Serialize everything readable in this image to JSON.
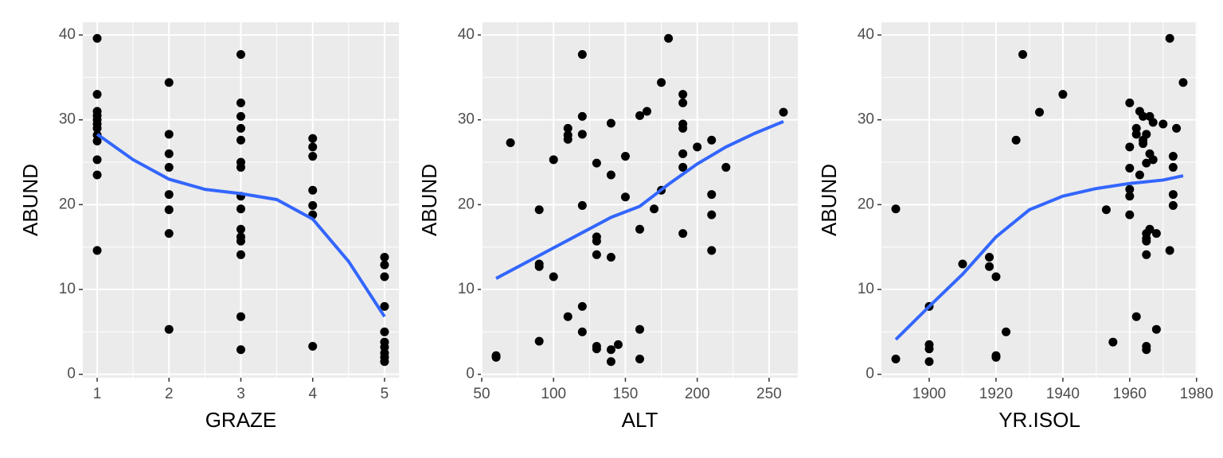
{
  "chart_data": [
    {
      "type": "scatter",
      "x_label": "GRAZE",
      "y_label": "ABUND",
      "x": [
        1,
        1,
        1,
        1,
        1,
        1,
        1,
        1,
        1,
        1,
        1,
        1,
        2,
        2,
        2,
        2,
        2,
        2,
        2,
        2,
        3,
        3,
        3,
        3,
        3,
        3,
        3,
        3,
        3,
        3,
        3,
        3,
        3,
        3,
        3,
        4,
        4,
        4,
        4,
        4,
        4,
        4,
        5,
        5,
        5,
        5,
        5,
        5,
        5,
        5,
        5,
        5
      ],
      "values": [
        39.6,
        33,
        31,
        30.5,
        30,
        29.5,
        29,
        28.2,
        27.5,
        25.3,
        23.5,
        14.6,
        34.4,
        28.3,
        26,
        24.4,
        21.2,
        19.4,
        16.6,
        5.3,
        37.7,
        32,
        30.4,
        29,
        27.6,
        25,
        24.4,
        21,
        19.5,
        17.1,
        16.2,
        15.7,
        14.1,
        6.8,
        2.9,
        27.8,
        26.8,
        25.7,
        21.7,
        19.9,
        18.8,
        3.3,
        13.8,
        12.9,
        11.5,
        8,
        5,
        3.8,
        3.2,
        2.5,
        2,
        1.5
      ],
      "color": "#000000",
      "smooth": {
        "x": [
          1,
          1.5,
          2,
          2.5,
          3,
          3.5,
          4,
          4.5,
          5
        ],
        "values": [
          28.3,
          25.3,
          23,
          21.8,
          21.3,
          20.6,
          18.3,
          13.3,
          6.8
        ],
        "color": "#3366ff"
      },
      "xlim": [
        0.8,
        5.2
      ],
      "xticks": [
        1,
        2,
        3,
        4,
        5
      ],
      "ylim": [
        -0.4,
        41.5
      ],
      "yticks": [
        0,
        10,
        20,
        30,
        40
      ],
      "grid": true
    },
    {
      "type": "scatter",
      "x_label": "ALT",
      "y_label": "ABUND",
      "x": [
        60,
        60,
        70,
        90,
        90,
        90,
        90,
        100,
        100,
        110,
        110,
        110,
        110,
        120,
        120,
        120,
        120,
        120,
        120,
        130,
        130,
        130,
        130,
        130,
        130,
        140,
        140,
        140,
        140,
        140,
        145,
        150,
        150,
        160,
        160,
        160,
        160,
        165,
        170,
        175,
        175,
        180,
        190,
        190,
        190,
        190,
        190,
        190,
        190,
        200,
        210,
        210,
        210,
        210,
        220,
        260
      ],
      "values": [
        2.2,
        2,
        27.3,
        19.4,
        13,
        12.7,
        3.9,
        25.3,
        11.5,
        29,
        28.2,
        27.7,
        6.8,
        37.7,
        30.4,
        28.3,
        19.9,
        8,
        5,
        24.9,
        16.2,
        15.7,
        14.1,
        3.3,
        3,
        29.6,
        23.5,
        13.8,
        2.9,
        1.5,
        3.5,
        25.7,
        20.9,
        30.5,
        17.1,
        5.3,
        1.8,
        31,
        19.5,
        34.4,
        21.7,
        39.6,
        33,
        32,
        29.5,
        29,
        26,
        24.4,
        16.6,
        26.8,
        27.6,
        21.2,
        18.8,
        14.6,
        24.4,
        30.9
      ],
      "color": "#000000",
      "smooth": {
        "x": [
          60,
          80,
          100,
          120,
          140,
          160,
          180,
          200,
          220,
          240,
          260
        ],
        "values": [
          11.3,
          13.1,
          14.9,
          16.7,
          18.5,
          19.8,
          22.4,
          24.8,
          26.8,
          28.4,
          29.8
        ],
        "color": "#3366ff"
      },
      "xlim": [
        50,
        270
      ],
      "xticks": [
        50,
        100,
        150,
        200,
        250
      ],
      "ylim": [
        -0.4,
        41.5
      ],
      "yticks": [
        0,
        10,
        20,
        30,
        40
      ],
      "grid": true
    },
    {
      "type": "scatter",
      "x_label": "YR.ISOL",
      "y_label": "ABUND",
      "x": [
        1890,
        1890,
        1900,
        1900,
        1900,
        1900,
        1910,
        1918,
        1918,
        1920,
        1920,
        1920,
        1923,
        1926,
        1928,
        1933,
        1940,
        1953,
        1955,
        1960,
        1960,
        1960,
        1960,
        1960,
        1960,
        1962,
        1962,
        1962,
        1963,
        1963,
        1964,
        1964,
        1964,
        1965,
        1965,
        1965,
        1965,
        1965,
        1965,
        1965,
        1965,
        1966,
        1966,
        1966,
        1967,
        1967,
        1968,
        1968,
        1970,
        1972,
        1972,
        1973,
        1973,
        1973,
        1973,
        1974,
        1976
      ],
      "values": [
        19.5,
        1.8,
        8,
        3.5,
        3,
        1.5,
        13,
        13.8,
        12.7,
        11.5,
        2.2,
        2,
        5,
        27.6,
        37.7,
        30.9,
        33,
        19.4,
        3.8,
        32,
        26.8,
        24.3,
        21.8,
        21,
        18.8,
        29,
        28.3,
        6.8,
        31,
        23.5,
        30.4,
        27.6,
        27.2,
        28.3,
        24.9,
        16.6,
        16,
        15.7,
        14.1,
        3.3,
        2.9,
        30.4,
        26,
        17.1,
        29.7,
        25.3,
        16.6,
        5.3,
        29.5,
        39.6,
        14.6,
        25.7,
        24.4,
        21.2,
        19.9,
        29,
        34.4
      ],
      "color": "#000000",
      "smooth": {
        "x": [
          1890,
          1900,
          1910,
          1920,
          1930,
          1940,
          1950,
          1960,
          1970,
          1976
        ],
        "values": [
          4.1,
          8,
          11.8,
          16.2,
          19.4,
          21,
          21.9,
          22.5,
          22.9,
          23.4
        ],
        "color": "#3366ff"
      },
      "xlim": [
        1885.7,
        1980.3
      ],
      "xticks": [
        1900,
        1920,
        1940,
        1960,
        1980
      ],
      "ylim": [
        -0.4,
        41.5
      ],
      "yticks": [
        0,
        10,
        20,
        30,
        40
      ],
      "grid": true
    }
  ]
}
